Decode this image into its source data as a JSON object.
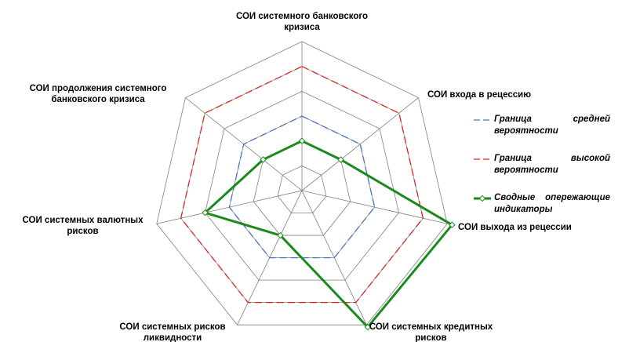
{
  "chart_data": {
    "type": "radar",
    "categories": [
      "СОИ системного банковского кризиса",
      "СОИ входа в рецессию",
      "СОИ выхода из рецессии",
      "СОИ системных кредитных рисков",
      "СОИ системных рисков ликвидности",
      "СОИ системных валютных рисков",
      "СОИ продолжения системного банковского кризиса"
    ],
    "series": [
      {
        "name": "Граница средней вероятности",
        "color": "#4472c4",
        "dash": true,
        "values": [
          3,
          3,
          3,
          3,
          3,
          3,
          3
        ]
      },
      {
        "name": "Граница высокой вероятности",
        "color": "#e0201b",
        "dash": true,
        "values": [
          5,
          5,
          5,
          5,
          5,
          5,
          5
        ]
      },
      {
        "name": "Сводные опережающие индикаторы",
        "color": "#1a8a1a",
        "dash": false,
        "values": [
          2,
          2,
          6.2,
          6.1,
          2,
          4,
          2
        ]
      }
    ],
    "ylim": [
      0,
      6
    ],
    "grid_levels": [
      1,
      2,
      3,
      4,
      5,
      6
    ]
  }
}
